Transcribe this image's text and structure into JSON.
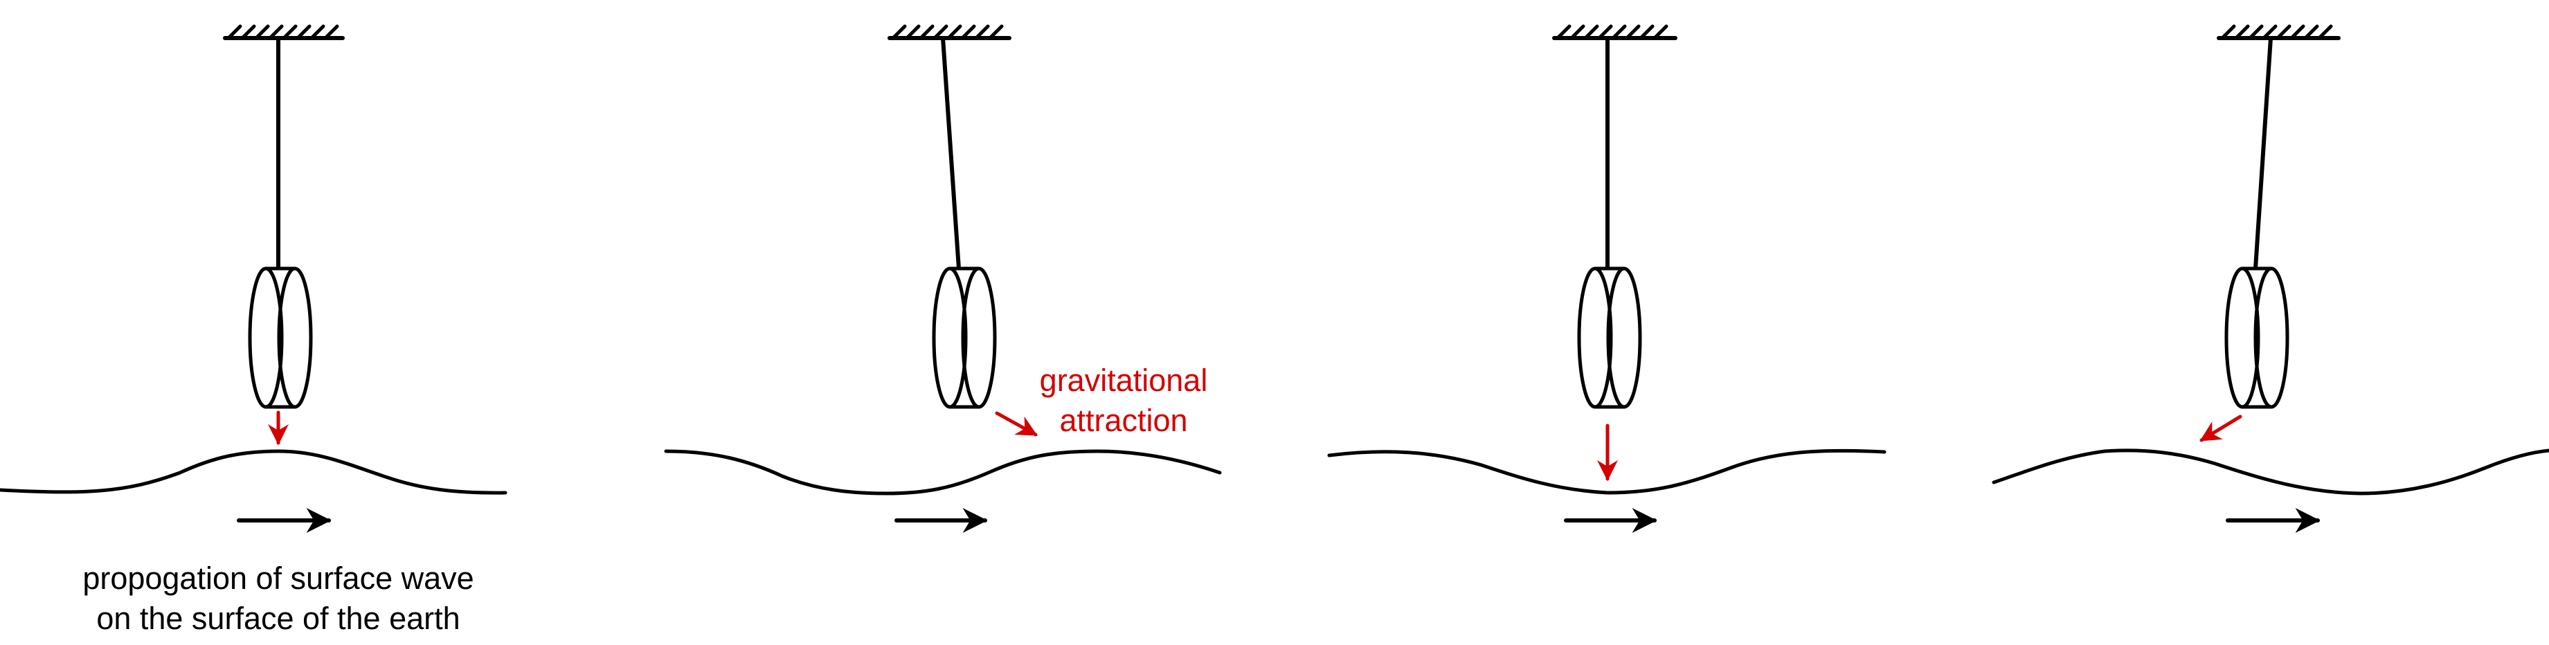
{
  "labels": {
    "propagation_line1": "propogation of surface wave",
    "propagation_line2": "on the surface of the earth",
    "gravity_line1": "gravitational",
    "gravity_line2": "attraction"
  },
  "colors": {
    "ink": "#000000",
    "accent": "#d50000",
    "background": "#ffffff"
  },
  "icons": {
    "mount": "hatched-ceiling-icon",
    "mass": "disk-mass-icon",
    "propagation": "right-arrow-icon",
    "force": "red-arrow-icon"
  }
}
